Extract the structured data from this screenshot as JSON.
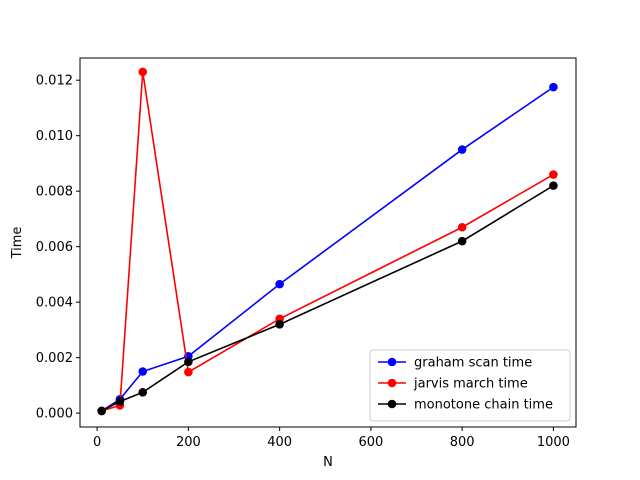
{
  "chart_data": {
    "type": "line",
    "title": "",
    "xlabel": "N",
    "ylabel": "Time",
    "xlim": [
      -37.5,
      1049.5
    ],
    "ylim": [
      -0.0005,
      0.0128
    ],
    "xticks": [
      0,
      200,
      400,
      600,
      800,
      1000
    ],
    "xtick_labels": [
      "0",
      "200",
      "400",
      "600",
      "800",
      "1000"
    ],
    "yticks": [
      0.0,
      0.002,
      0.004,
      0.006,
      0.008,
      0.01,
      0.012
    ],
    "ytick_labels": [
      "0.000",
      "0.002",
      "0.004",
      "0.006",
      "0.008",
      "0.010",
      "0.012"
    ],
    "grid": false,
    "legend_position": "lower-right",
    "x": [
      10,
      50,
      100,
      200,
      400,
      800,
      1000
    ],
    "series": [
      {
        "name": "graham scan time",
        "color": "#0000ff",
        "values": [
          8e-05,
          0.0005,
          0.0015,
          0.00205,
          0.00465,
          0.0095,
          0.01175
        ]
      },
      {
        "name": "jarvis march time",
        "color": "#ff0000",
        "values": [
          8e-05,
          0.00028,
          0.0123,
          0.00148,
          0.0034,
          0.0067,
          0.0086
        ]
      },
      {
        "name": "monotone chain time",
        "color": "#000000",
        "values": [
          8e-05,
          0.00042,
          0.00075,
          0.00185,
          0.0032,
          0.0062,
          0.0082
        ]
      }
    ]
  }
}
